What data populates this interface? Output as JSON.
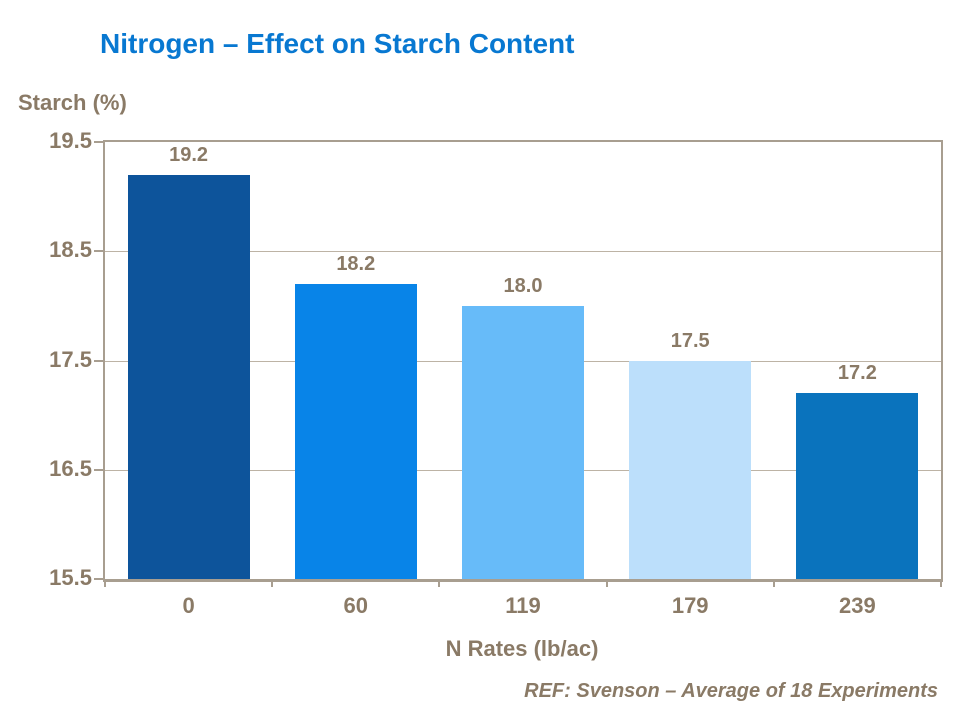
{
  "slide": {
    "title": "Nitrogen – Effect on Starch Content",
    "footer": "REF: Svenson – Average of 18 Experiments"
  },
  "colors": {
    "title_blue": "#0878D1",
    "text_brown": "#8A7A66",
    "axis_line": "#A89E90",
    "gridline": "#BDB3A5",
    "background": "#FFFFFF",
    "bar_colors": [
      "#0D549B",
      "#0884E8",
      "#67BBF9",
      "#BCDFFB",
      "#0A73BD"
    ]
  },
  "chart_data": {
    "type": "bar",
    "title": "Nitrogen – Effect on Starch Content",
    "categories": [
      "0",
      "60",
      "119",
      "179",
      "239"
    ],
    "values": [
      19.2,
      18.2,
      18.0,
      17.5,
      17.2
    ],
    "value_labels": [
      "19.2",
      "18.2",
      "18.0",
      "17.5",
      "17.2"
    ],
    "xlabel": "N Rates (lb/ac)",
    "ylabel": "Starch (%)",
    "ylim": [
      15.5,
      19.5
    ],
    "yticks": [
      "19.5",
      "18.5",
      "17.5",
      "16.5",
      "15.5"
    ],
    "ytick_values": [
      19.5,
      18.5,
      17.5,
      16.5,
      15.5
    ],
    "grid": "horizontal",
    "legend": "none",
    "annotation": "REF: Svenson – Average of 18 Experiments"
  }
}
